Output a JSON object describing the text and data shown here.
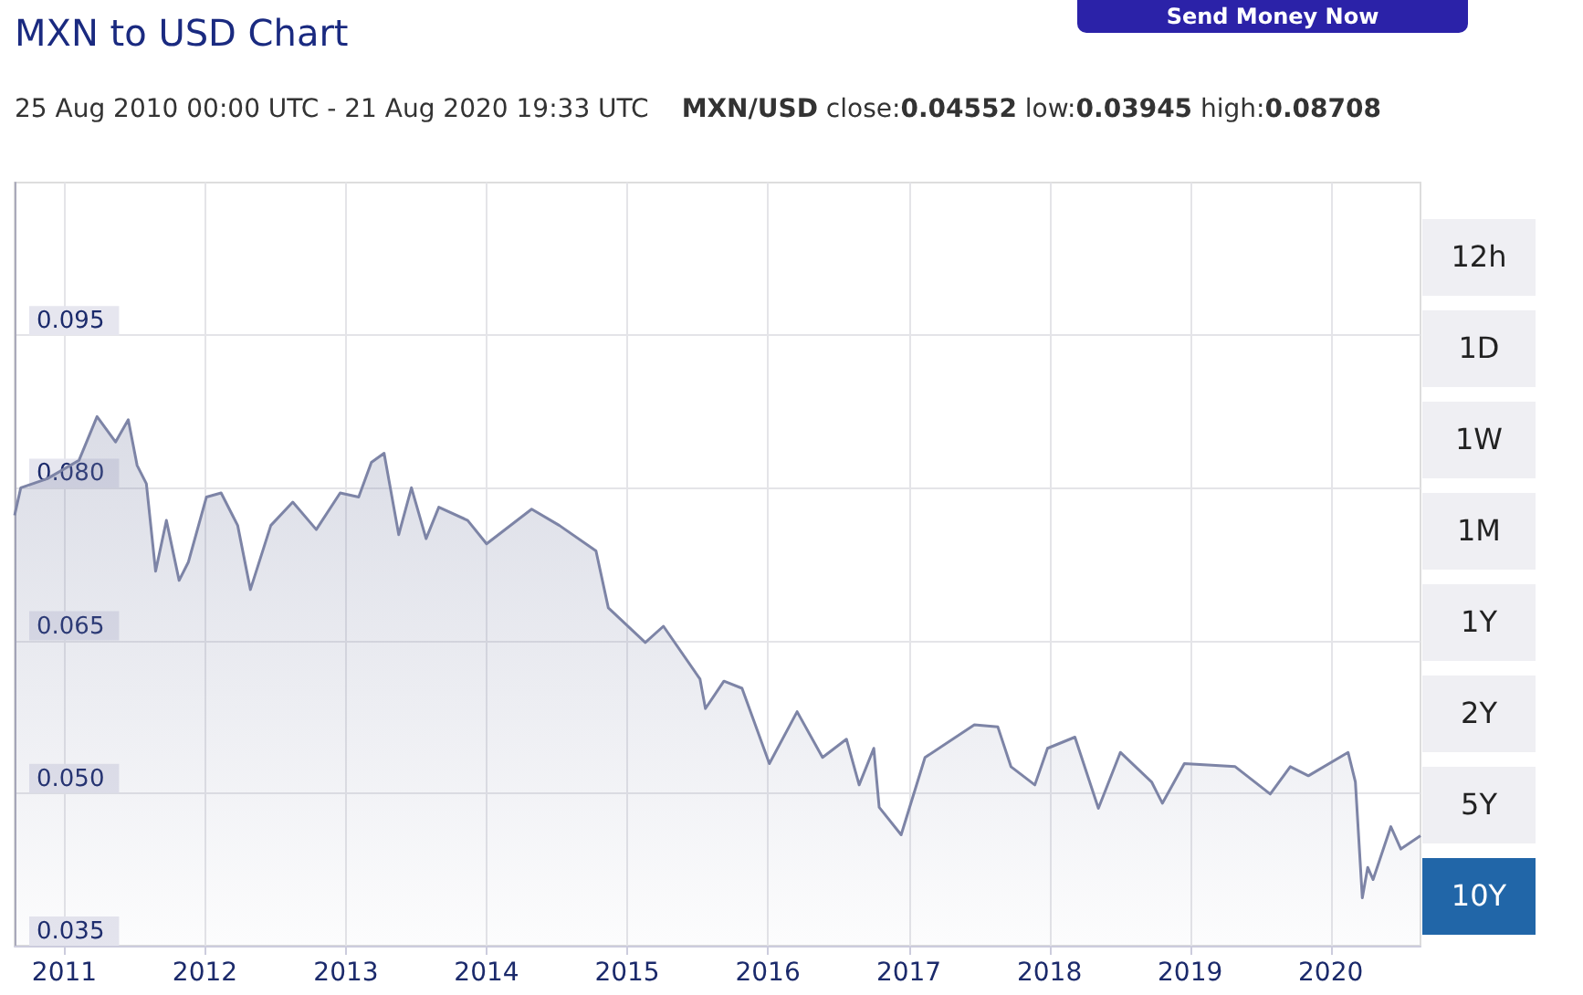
{
  "chart_data": {
    "type": "area",
    "title": "MXN to USD Chart",
    "subtitle": "25 Aug 2010 00:00 UTC - 21 Aug 2020 19:33 UTC",
    "annotations": [
      "MXN/USD close:0.04552 low:0.03945 high:0.08708",
      "Send Money Now",
      "12h",
      "1D",
      "1W",
      "1M",
      "1Y",
      "2Y",
      "5Y",
      "10Y"
    ],
    "x": [
      "2010-08-25",
      "2010-09-10",
      "2010-11-18",
      "2011-02-08",
      "2011-03-27",
      "2011-05-14",
      "2011-06-16",
      "2011-07-09",
      "2011-08-02",
      "2011-08-26",
      "2011-09-23",
      "2011-10-26",
      "2011-11-19",
      "2012-01-05",
      "2012-02-12",
      "2012-03-26",
      "2012-04-28",
      "2012-06-20",
      "2012-08-16",
      "2012-10-16",
      "2012-12-17",
      "2013-02-03",
      "2013-03-08",
      "2013-04-10",
      "2013-05-18",
      "2013-06-20",
      "2013-07-28",
      "2013-08-30",
      "2013-11-13",
      "2014-01-01",
      "2014-04-28",
      "2014-07-09",
      "2014-10-12",
      "2014-11-13",
      "2015-02-17",
      "2015-04-05",
      "2015-07-09",
      "2015-07-23",
      "2015-09-09",
      "2015-10-26",
      "2016-01-05",
      "2016-03-17",
      "2016-05-22",
      "2016-07-23",
      "2016-08-25",
      "2016-10-02",
      "2016-10-16",
      "2016-12-12",
      "2017-02-12",
      "2017-06-20",
      "2017-08-20",
      "2017-09-23",
      "2017-11-24",
      "2017-12-27",
      "2018-03-08",
      "2018-05-08",
      "2018-07-04",
      "2018-09-23",
      "2018-10-21",
      "2018-12-17",
      "2019-04-28",
      "2019-07-28",
      "2019-09-18",
      "2019-11-04",
      "2020-02-15",
      "2020-03-05",
      "2020-03-23",
      "2020-04-06",
      "2020-04-20",
      "2020-06-05",
      "2020-07-01",
      "2020-08-21"
    ],
    "series": [
      {
        "color": "#7d84a6",
        "values": [
          0.0773,
          0.08,
          0.0809,
          0.0827,
          0.087,
          0.0845,
          0.0867,
          0.0822,
          0.0804,
          0.0718,
          0.0768,
          0.0709,
          0.0727,
          0.0791,
          0.0795,
          0.0763,
          0.07,
          0.0763,
          0.0786,
          0.0759,
          0.0795,
          0.0791,
          0.0825,
          0.0834,
          0.0754,
          0.08,
          0.075,
          0.0781,
          0.0768,
          0.0745,
          0.0779,
          0.0763,
          0.0738,
          0.0682,
          0.0648,
          0.0664,
          0.0612,
          0.0583,
          0.061,
          0.0603,
          0.0529,
          0.058,
          0.0535,
          0.0553,
          0.0508,
          0.0544,
          0.0486,
          0.0459,
          0.0535,
          0.0567,
          0.0565,
          0.0526,
          0.0508,
          0.0544,
          0.0555,
          0.0485,
          0.054,
          0.0511,
          0.049,
          0.0529,
          0.0526,
          0.0499,
          0.0526,
          0.0517,
          0.054,
          0.0511,
          0.0397,
          0.0427,
          0.0415,
          0.0467,
          0.0445,
          0.0458
        ]
      }
    ],
    "xlim": [
      "2010-08-25",
      "2020-08-21"
    ],
    "xticks": [
      {
        "value": "2011-01-01",
        "label": "2011"
      },
      {
        "value": "2012-01-01",
        "label": "2012"
      },
      {
        "value": "2013-01-01",
        "label": "2013"
      },
      {
        "value": "2014-01-01",
        "label": "2014"
      },
      {
        "value": "2015-01-01",
        "label": "2015"
      },
      {
        "value": "2016-01-01",
        "label": "2016"
      },
      {
        "value": "2017-01-01",
        "label": "2017"
      },
      {
        "value": "2018-01-01",
        "label": "2018"
      },
      {
        "value": "2019-01-01",
        "label": "2019"
      },
      {
        "value": "2020-01-01",
        "label": "2020"
      }
    ],
    "ylim": [
      0.035,
      0.11
    ],
    "yticks": [
      {
        "value": 0.035,
        "label": "0.035"
      },
      {
        "value": 0.05,
        "label": "0.050"
      },
      {
        "value": 0.065,
        "label": "0.065"
      },
      {
        "value": 0.08,
        "label": "0.080"
      },
      {
        "value": 0.095,
        "label": "0.095"
      }
    ],
    "grid": true,
    "marker": "none",
    "line_style": "solid"
  }
}
